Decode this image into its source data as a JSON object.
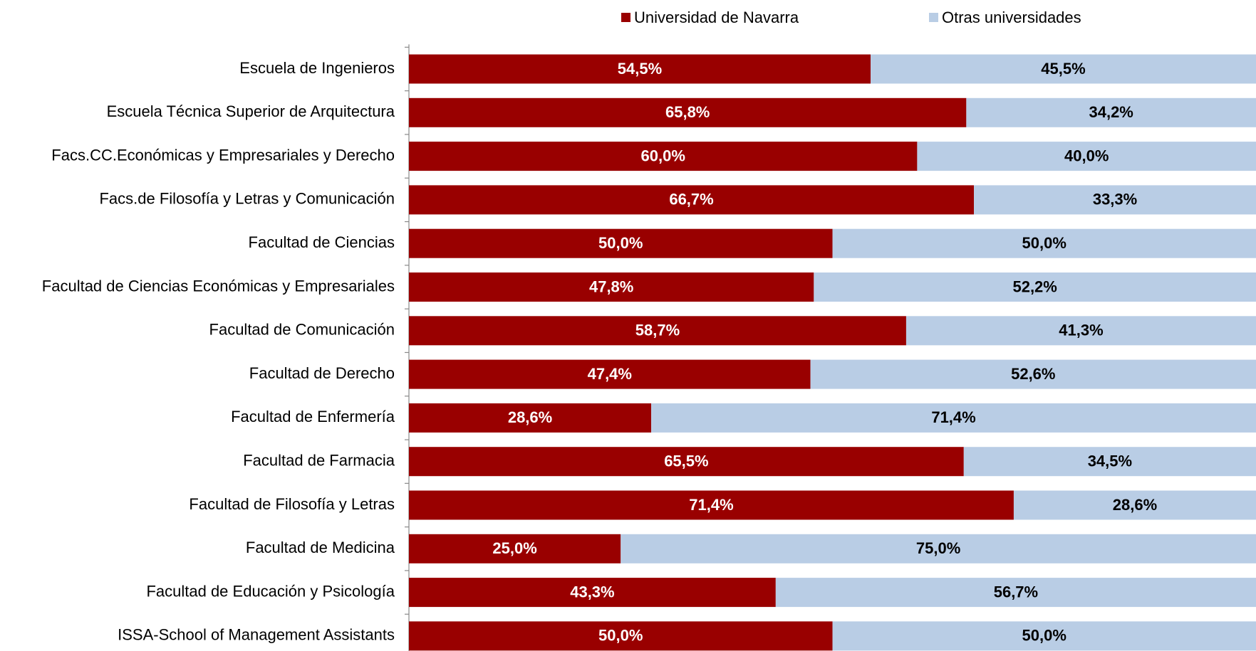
{
  "chart_data": {
    "type": "stacked_bar_horizontal",
    "categories": [
      "Escuela de Ingenieros",
      "Escuela Técnica Superior de Arquitectura",
      "Facs.CC.Económicas y Empresariales y Derecho",
      "Facs.de Filosofía y Letras y Comunicación",
      "Facultad de Ciencias",
      "Facultad de Ciencias Económicas y Empresariales",
      "Facultad de Comunicación",
      "Facultad de Derecho",
      "Facultad de Enfermería",
      "Facultad de Farmacia",
      "Facultad de Filosofía y Letras",
      "Facultad de Medicina",
      "Facultad de Educación y Psicología",
      "ISSA-School of Management Assistants"
    ],
    "series": [
      {
        "name": "Universidad de Navarra",
        "color": "#990000",
        "label_color": "#ffffff",
        "values": [
          54.5,
          65.8,
          60.0,
          66.7,
          50.0,
          47.8,
          58.7,
          47.4,
          28.6,
          65.5,
          71.4,
          25.0,
          43.3,
          50.0
        ],
        "value_labels": [
          "54,5%",
          "65,8%",
          "60,0%",
          "66,7%",
          "50,0%",
          "47,8%",
          "58,7%",
          "47,4%",
          "28,6%",
          "65,5%",
          "71,4%",
          "25,0%",
          "43,3%",
          "50,0%"
        ]
      },
      {
        "name": "Otras universidades",
        "color": "#b9cde5",
        "label_color": "#000000",
        "values": [
          45.5,
          34.2,
          40.0,
          33.3,
          50.0,
          52.2,
          41.3,
          52.6,
          71.4,
          34.5,
          28.6,
          75.0,
          56.7,
          50.0
        ],
        "value_labels": [
          "45,5%",
          "34,2%",
          "40,0%",
          "33,3%",
          "50,0%",
          "52,2%",
          "41,3%",
          "52,6%",
          "71,4%",
          "34,5%",
          "28,6%",
          "75,0%",
          "56,7%",
          "50,0%"
        ]
      }
    ],
    "xlim": [
      0,
      100
    ],
    "legend": "top"
  }
}
